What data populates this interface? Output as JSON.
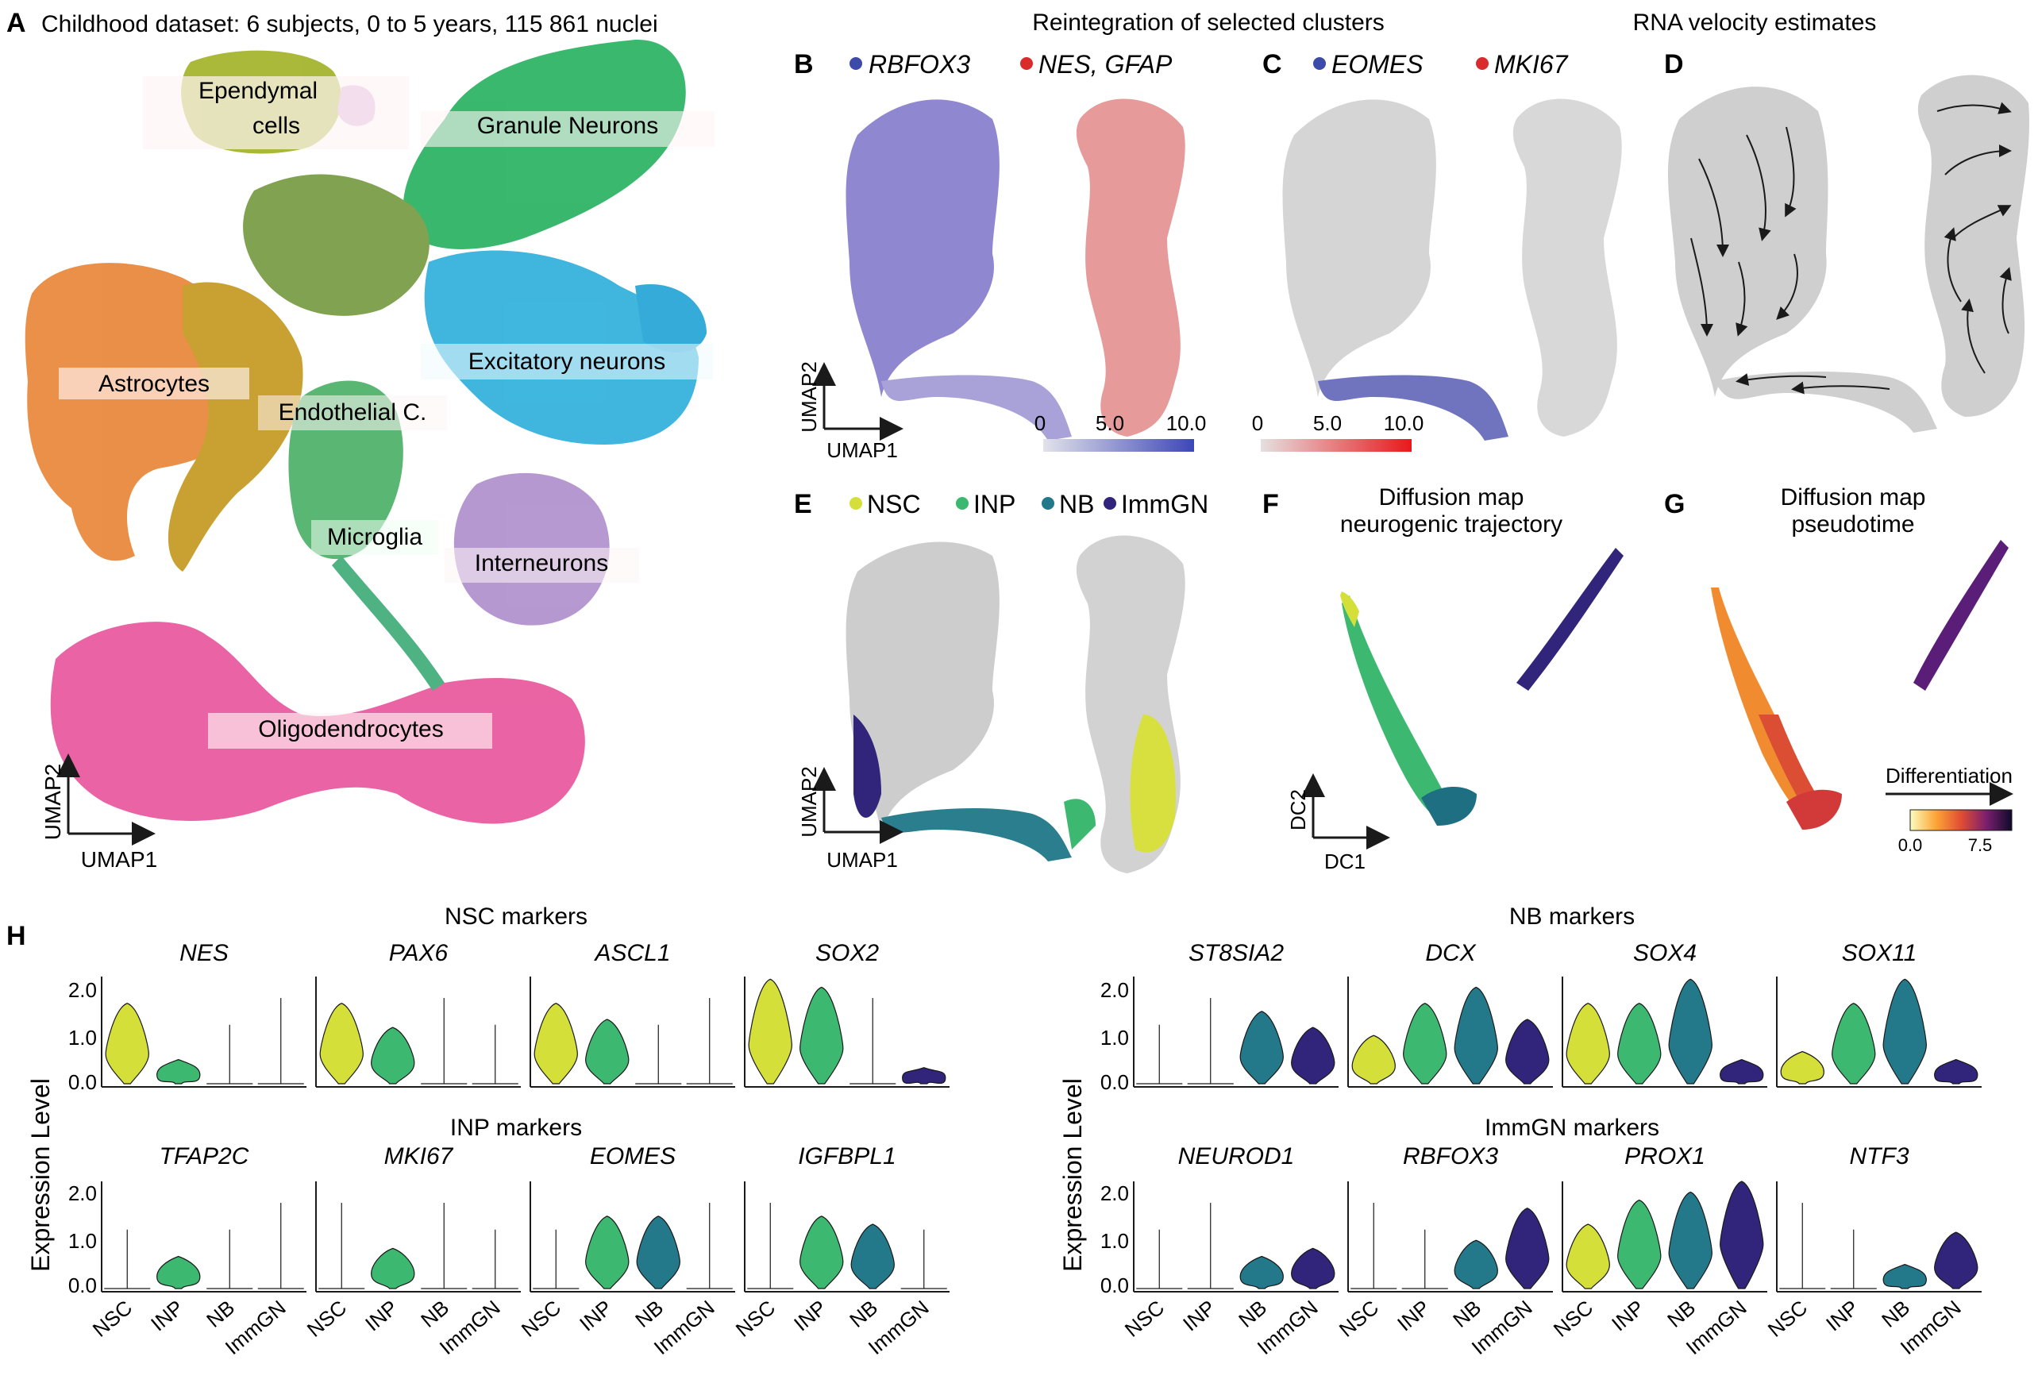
{
  "panelA": {
    "letter": "A",
    "title": "Childhood dataset: 6 subjects, 0 to 5 years, 115 861 nuclei",
    "xlabel": "UMAP1",
    "ylabel": "UMAP2",
    "clusters": [
      {
        "label": "Ependymal cells",
        "line1": "Ependymal",
        "line2": "cells",
        "color": "#9fb02c"
      },
      {
        "label": "Granule Neurons",
        "color": "#2db56a"
      },
      {
        "label": "Astrocytes",
        "color": "#e68a3a"
      },
      {
        "label": "Excitatory neurons",
        "color": "#36b6de"
      },
      {
        "label": "Endothelial C.",
        "color": "#c7a127"
      },
      {
        "label": "Microglia",
        "color": "#4fb36c"
      },
      {
        "label": "Interneurons",
        "color": "#b394cf"
      },
      {
        "label": "Oligodendrocytes",
        "color": "#e85a9e"
      }
    ]
  },
  "panelB": {
    "letter": "B",
    "title": "Reintegration of selected clusters",
    "legend": [
      {
        "label": "RBFOX3",
        "color": "#3c4aa8"
      },
      {
        "label": "NES, GFAP",
        "color": "#d92b2b"
      }
    ],
    "xlabel": "UMAP1",
    "ylabel": "UMAP2",
    "scale_ticks": [
      "0",
      "5.0",
      "10.0"
    ],
    "scale_colors": [
      "#e2e2ea",
      "#3d47b5"
    ]
  },
  "panelC": {
    "letter": "C",
    "legend": [
      {
        "label": "EOMES",
        "color": "#3c4aa8"
      },
      {
        "label": "MKI67",
        "color": "#d92b2b"
      }
    ],
    "scale_ticks": [
      "0",
      "5.0",
      "10.0"
    ],
    "scale_colors": [
      "#e5e0e0",
      "#e8181c"
    ]
  },
  "panelD": {
    "letter": "D",
    "title": "RNA velocity estimates"
  },
  "panelE": {
    "letter": "E",
    "legend": [
      {
        "label": "NSC",
        "color": "#d4df3a"
      },
      {
        "label": "INP",
        "color": "#3db870"
      },
      {
        "label": "NB",
        "color": "#23798a"
      },
      {
        "label": "ImmGN",
        "color": "#30257a"
      }
    ],
    "xlabel": "UMAP1",
    "ylabel": "UMAP2"
  },
  "panelF": {
    "letter": "F",
    "title_line1": "Diffusion map",
    "title_line2": "neurogenic trajectory",
    "xlabel": "DC1",
    "ylabel": "DC2"
  },
  "panelG": {
    "letter": "G",
    "title_line1": "Diffusion map",
    "title_line2": "pseudotime",
    "colorbar_title": "Differentiation",
    "colorbar_ticks": [
      "0.0",
      "7.5"
    ]
  },
  "panelH": {
    "letter": "H",
    "ylabel": "Expression Level",
    "yticks": [
      "2.0",
      "1.0",
      "0.0"
    ],
    "groups": [
      "NSC",
      "INP",
      "NB",
      "ImmGN"
    ],
    "group_colors": [
      "#d4df3a",
      "#3db870",
      "#23798a",
      "#30257a"
    ],
    "sections": [
      {
        "title": "NSC markers",
        "genes": [
          "NES",
          "PAX6",
          "ASCL1",
          "SOX2"
        ]
      },
      {
        "title": "INP markers",
        "genes": [
          "TFAP2C",
          "MKI67",
          "EOMES",
          "IGFBPL1"
        ]
      },
      {
        "title": "NB markers",
        "genes": [
          "ST8SIA2",
          "DCX",
          "SOX4",
          "SOX11"
        ]
      },
      {
        "title": "ImmGN markers",
        "genes": [
          "NEUROD1",
          "RBFOX3",
          "PROX1",
          "NTF3"
        ]
      }
    ]
  },
  "chart_data": {
    "type": "violin",
    "ylim": [
      0,
      2.0
    ],
    "ylabel": "Expression Level",
    "categories": [
      "NSC",
      "INP",
      "NB",
      "ImmGN"
    ],
    "genes": {
      "NES": [
        1.0,
        0.3,
        0.0,
        0.0
      ],
      "PAX6": [
        1.0,
        0.7,
        0.0,
        0.0
      ],
      "ASCL1": [
        1.0,
        0.8,
        0.0,
        0.0
      ],
      "SOX2": [
        1.3,
        1.2,
        0.0,
        0.2
      ],
      "TFAP2C": [
        0.0,
        0.4,
        0.0,
        0.0
      ],
      "MKI67": [
        0.0,
        0.5,
        0.0,
        0.0
      ],
      "EOMES": [
        0.0,
        0.9,
        0.9,
        0.0
      ],
      "IGFBPL1": [
        0.0,
        0.9,
        0.8,
        0.0
      ],
      "ST8SIA2": [
        0.0,
        0.0,
        0.9,
        0.7
      ],
      "DCX": [
        0.6,
        1.0,
        1.2,
        0.8
      ],
      "SOX4": [
        1.0,
        1.0,
        1.3,
        0.3
      ],
      "SOX11": [
        0.4,
        1.0,
        1.3,
        0.3
      ],
      "NEUROD1": [
        0.0,
        0.0,
        0.4,
        0.5
      ],
      "RBFOX3": [
        0.0,
        0.0,
        0.6,
        1.0
      ],
      "PROX1": [
        0.8,
        1.1,
        1.2,
        1.5
      ],
      "NTF3": [
        0.0,
        0.0,
        0.3,
        0.7
      ]
    }
  }
}
